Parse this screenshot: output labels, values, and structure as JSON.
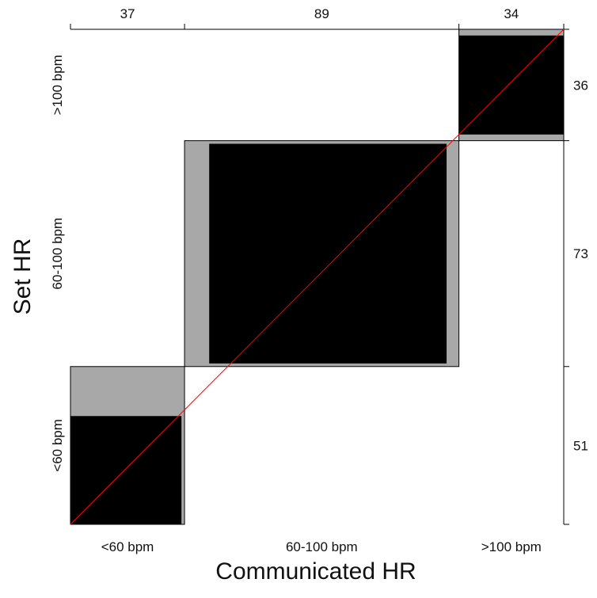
{
  "chart_data": {
    "type": "agreement",
    "xlabel": "Communicated HR",
    "ylabel": "Set HR",
    "categories": [
      "<60 bpm",
      "60-100 bpm",
      ">100 bpm"
    ],
    "column_totals": [
      37,
      89,
      34
    ],
    "row_totals": [
      51,
      73,
      36
    ],
    "row_totals_order": [
      "<60 bpm",
      "60-100 bpm",
      ">100 bpm"
    ],
    "exact_agreement": [
      35,
      77,
      30
    ],
    "partial_agreement_extra": [
      [
        16,
        0
      ],
      [
        2,
        17,
        2
      ],
      [
        0,
        4
      ]
    ],
    "diagonal_reference_line": true,
    "colors": {
      "exact": "#000000",
      "partial": "#a8a8a8",
      "reference_line": "#ff0000",
      "frame": "#000000"
    }
  }
}
